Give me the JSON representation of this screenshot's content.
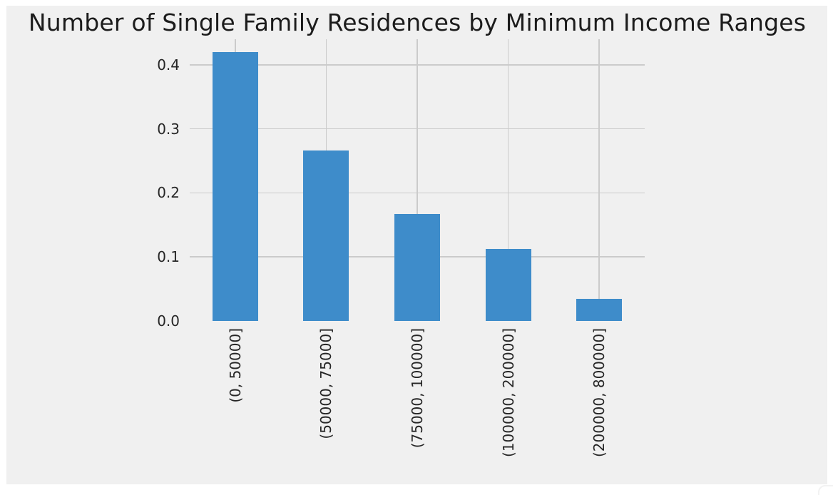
{
  "figure": {
    "background": "#ffffff",
    "panel_color": "#f0f0f0"
  },
  "chart_data": {
    "type": "bar",
    "title": "Number of Single Family Residences by Minimum Income Ranges",
    "categories": [
      "(0, 50000]",
      "(50000, 75000]",
      "(75000, 100000]",
      "(100000, 200000]",
      "(200000, 800000]"
    ],
    "values": [
      0.42,
      0.266,
      0.167,
      0.113,
      0.034
    ],
    "xlabel": "",
    "ylabel": "",
    "ylim": [
      0,
      0.44
    ],
    "yticks": [
      "0.0",
      "0.1",
      "0.2",
      "0.3",
      "0.4"
    ],
    "ytick_values": [
      0.0,
      0.1,
      0.2,
      0.3,
      0.4
    ],
    "grid": "on",
    "legend": "none",
    "bar_width_fraction": 0.5,
    "colors": {
      "bar": "#3e8cca",
      "grid": "#cbcbcb",
      "tick_label": "#262626",
      "title": "#1c1c1c"
    }
  }
}
